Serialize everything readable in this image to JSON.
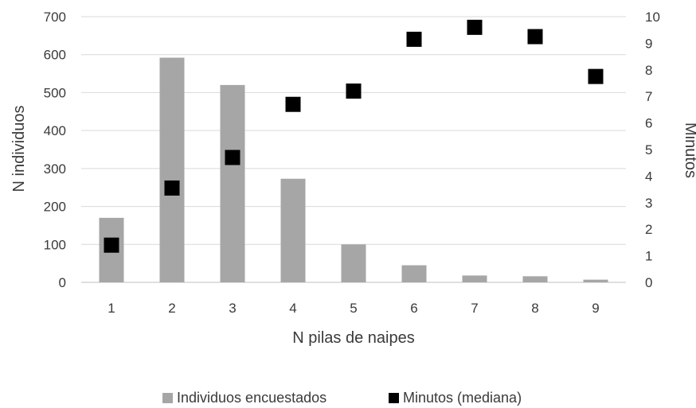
{
  "chart_data": {
    "type": "bar",
    "categories": [
      "1",
      "2",
      "3",
      "4",
      "5",
      "6",
      "7",
      "8",
      "9"
    ],
    "series": [
      {
        "name": "Individuos encuestados",
        "type": "bar",
        "axis": "left",
        "color": "#a6a6a6",
        "values": [
          170,
          592,
          520,
          273,
          100,
          45,
          18,
          16,
          7
        ]
      },
      {
        "name": "Minutos (mediana)",
        "type": "scatter",
        "axis": "right",
        "color": "#000000",
        "values": [
          1.4,
          3.55,
          4.7,
          6.7,
          7.2,
          9.15,
          9.6,
          9.25,
          7.75
        ]
      }
    ],
    "xlabel": "N pilas de naipes",
    "ylabel": "N individuos",
    "y2label": "Minutos",
    "ylim": [
      0,
      700
    ],
    "yticks": [
      "0",
      "100",
      "200",
      "300",
      "400",
      "500",
      "600",
      "700"
    ],
    "y2lim": [
      0,
      10
    ],
    "y2ticks": [
      "0",
      "1",
      "2",
      "3",
      "4",
      "5",
      "6",
      "7",
      "8",
      "9",
      "10"
    ],
    "grid": true,
    "legend_position": "bottom"
  }
}
